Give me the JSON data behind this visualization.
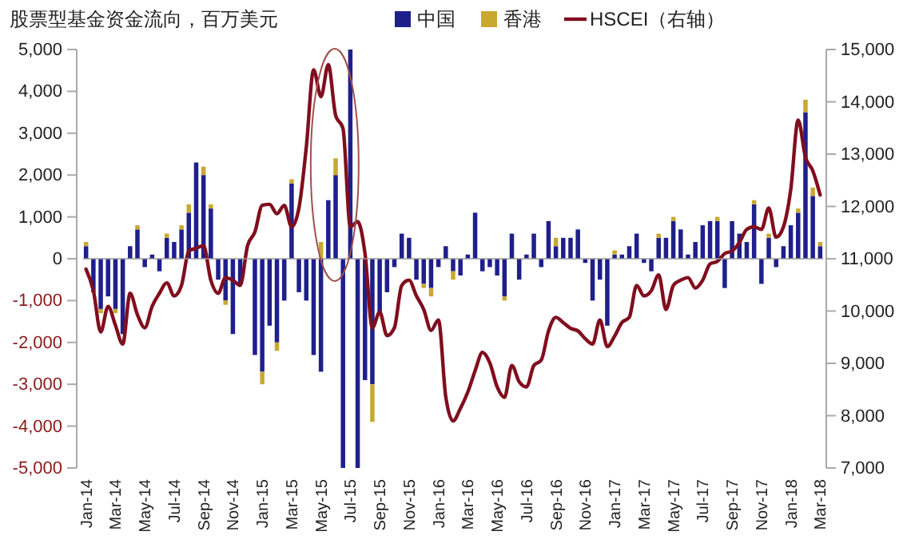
{
  "chart_data": {
    "type": "bar",
    "title": "股票型基金资金流向，百万美元",
    "categories": [
      "Jan-14",
      null,
      null,
      null,
      "Mar-14",
      null,
      null,
      null,
      "May-14",
      null,
      null,
      null,
      "Jul-14",
      null,
      null,
      null,
      "Sep-14",
      null,
      null,
      null,
      "Nov-14",
      null,
      null,
      null,
      "Jan-15",
      null,
      null,
      null,
      "Mar-15",
      null,
      null,
      null,
      "May-15",
      null,
      null,
      null,
      "Jul-15",
      null,
      null,
      null,
      "Sep-15",
      null,
      null,
      null,
      "Nov-15",
      null,
      null,
      null,
      "Jan-16",
      null,
      null,
      null,
      "Mar-16",
      null,
      null,
      null,
      "May-16",
      null,
      null,
      null,
      "Jul-16",
      null,
      null,
      null,
      "Sep-16",
      null,
      null,
      null,
      "Nov-16",
      null,
      null,
      null,
      "Jan-17",
      null,
      null,
      null,
      "Mar-17",
      null,
      null,
      null,
      "May-17",
      null,
      null,
      null,
      "Jul-17",
      null,
      null,
      null,
      "Sep-17",
      null,
      null,
      null,
      "Nov-17",
      null,
      null,
      null,
      "Jan-18",
      null,
      null,
      null,
      "Mar-18"
    ],
    "stacked": true,
    "legend": "top",
    "series": [
      {
        "name": "中国",
        "type": "bar",
        "color": "#1f1f8c",
        "values": [
          300,
          -800,
          -1200,
          -900,
          -1200,
          -1800,
          300,
          700,
          -200,
          100,
          -300,
          500,
          400,
          700,
          1100,
          2300,
          2000,
          1200,
          -500,
          -1000,
          -1800,
          -600,
          null,
          -2300,
          -2700,
          -1600,
          -2000,
          -1000,
          1800,
          -800,
          -1000,
          -2300,
          -2700,
          1400,
          2000,
          -5000,
          5000,
          -5000,
          -2900,
          -3000,
          -1300,
          -800,
          -200,
          600,
          500,
          -500,
          -600,
          -700,
          -200,
          300,
          -300,
          -400,
          100,
          1100,
          -300,
          -200,
          -400,
          -900,
          600,
          -500,
          100,
          600,
          -200,
          900,
          300,
          500,
          500,
          700,
          -100,
          -1000,
          -500,
          -1600,
          100,
          100,
          300,
          600,
          -100,
          -300,
          500,
          500,
          900,
          700,
          100,
          400,
          800,
          900,
          900,
          -700,
          900,
          600,
          400,
          1300,
          -600,
          500,
          -200,
          300,
          800,
          1100,
          3500,
          1500,
          300
        ]
      },
      {
        "name": "香港",
        "type": "bar",
        "color": "#c9a832",
        "values": [
          100,
          0,
          -100,
          0,
          -100,
          null,
          0,
          100,
          0,
          0,
          0,
          100,
          0,
          100,
          200,
          0,
          200,
          100,
          0,
          -100,
          0,
          0,
          null,
          0,
          -300,
          0,
          -200,
          0,
          100,
          0,
          0,
          0,
          400,
          0,
          400,
          0,
          0,
          0,
          0,
          -900,
          null,
          0,
          0,
          0,
          0,
          0,
          -100,
          -200,
          0,
          0,
          -200,
          0,
          0,
          0,
          0,
          0,
          0,
          -100,
          0,
          0,
          0,
          0,
          0,
          0,
          200,
          0,
          0,
          0,
          0,
          0,
          0,
          0,
          100,
          0,
          0,
          0,
          0,
          0,
          100,
          0,
          100,
          0,
          0,
          0,
          0,
          0,
          100,
          0,
          0,
          0,
          0,
          100,
          0,
          100,
          0,
          0,
          0,
          100,
          300,
          200,
          100
        ]
      },
      {
        "name": "HSCEI（右轴）",
        "type": "line",
        "axis": "y2",
        "color": "#800e1e",
        "values": [
          10800,
          10390,
          9600,
          10090,
          9730,
          9370,
          10340,
          9930,
          9680,
          10090,
          10340,
          10540,
          10290,
          10490,
          11150,
          11200,
          11250,
          10590,
          10340,
          10640,
          10590,
          10490,
          11250,
          11510,
          12020,
          12040,
          11860,
          12020,
          11610,
          11970,
          13130,
          14610,
          14100,
          14710,
          13740,
          13490,
          11610,
          11710,
          11100,
          9680,
          9980,
          9530,
          9680,
          10490,
          10590,
          10290,
          10030,
          9630,
          9830,
          8360,
          7900,
          8140,
          8450,
          8860,
          9210,
          9010,
          8550,
          8350,
          8960,
          8650,
          8550,
          8960,
          9060,
          9620,
          9880,
          9780,
          9670,
          9620,
          9470,
          9370,
          9830,
          9320,
          9520,
          9780,
          9880,
          10490,
          10290,
          10390,
          10690,
          10030,
          10490,
          10590,
          10640,
          10440,
          10590,
          10900,
          10950,
          11100,
          11150,
          11310,
          11560,
          11610,
          11560,
          11970,
          11410,
          11610,
          12330,
          13650,
          12940,
          12680,
          12220
        ]
      }
    ],
    "ylim": [
      -5000,
      5000
    ],
    "yticks": [
      {
        "value": -5000,
        "label": "-5,000"
      },
      {
        "value": -4000,
        "label": "-4,000"
      },
      {
        "value": -3000,
        "label": "-3,000"
      },
      {
        "value": -2000,
        "label": "-2,000"
      },
      {
        "value": -1000,
        "label": "-1,000"
      },
      0,
      {
        "value": 1000,
        "label": "1,000"
      },
      {
        "value": 2000,
        "label": "2,000"
      },
      {
        "value": 3000,
        "label": "3,000"
      },
      {
        "value": 4000,
        "label": "4,000"
      },
      {
        "value": 5000,
        "label": "5,000"
      }
    ],
    "y2lim": [
      7000,
      15000
    ],
    "y2ticks": [
      {
        "value": 7000,
        "label": "7,000"
      },
      {
        "value": 8000,
        "label": "8,000"
      },
      {
        "value": 9000,
        "label": "9,000"
      },
      {
        "value": 10000,
        "label": "10,000"
      },
      {
        "value": 11000,
        "label": "11,000"
      },
      {
        "value": 12000,
        "label": "12,000"
      },
      {
        "value": 13000,
        "label": "13,000"
      },
      {
        "value": 14000,
        "label": "14,000"
      },
      {
        "value": 15000,
        "label": "15,000"
      }
    ]
  }
}
